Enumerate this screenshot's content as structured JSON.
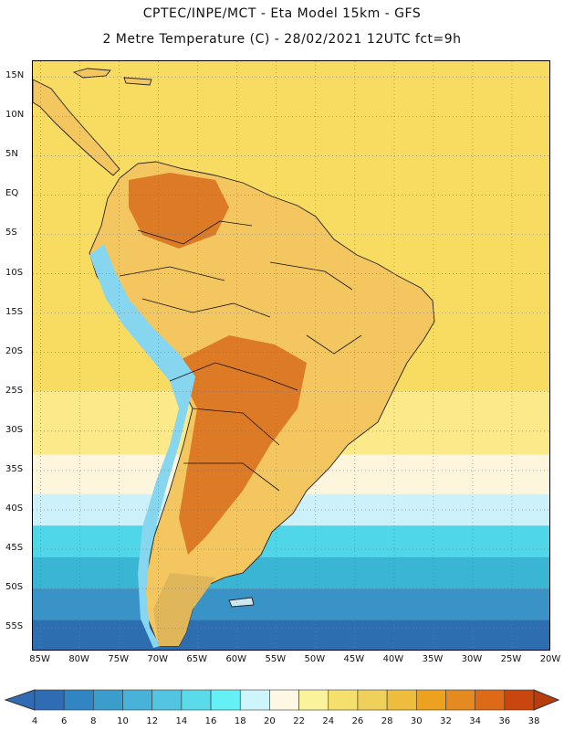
{
  "header": {
    "line1": "CPTEC/INPE/MCT -  Eta Model 15km - GFS",
    "line2": "2 Metre Temperature (C) - 28/02/2021 12UTC fct=9h"
  },
  "map": {
    "lat_range": [
      -58,
      17
    ],
    "lon_range": [
      -86,
      -20
    ],
    "lat_labels": [
      "15N",
      "10N",
      "5N",
      "EQ",
      "5S",
      "10S",
      "15S",
      "20S",
      "25S",
      "30S",
      "35S",
      "40S",
      "45S",
      "50S",
      "55S"
    ],
    "lat_values": [
      15,
      10,
      5,
      0,
      -5,
      -10,
      -15,
      -20,
      -25,
      -30,
      -35,
      -40,
      -45,
      -50,
      -55
    ],
    "lon_labels": [
      "85W",
      "80W",
      "75W",
      "70W",
      "65W",
      "60W",
      "55W",
      "50W",
      "45W",
      "40W",
      "35W",
      "30W",
      "25W",
      "20W"
    ],
    "lon_values": [
      -85,
      -80,
      -75,
      -70,
      -65,
      -60,
      -55,
      -50,
      -45,
      -40,
      -35,
      -30,
      -25,
      -20
    ],
    "ocean_bands": [
      {
        "lat_top": 17,
        "lat_bottom": -25,
        "color": "#f8dc62"
      },
      {
        "lat_top": -25,
        "lat_bottom": -33,
        "color": "#fbe98a"
      },
      {
        "lat_top": -33,
        "lat_bottom": -38,
        "color": "#fdf6dc"
      },
      {
        "lat_top": -38,
        "lat_bottom": -42,
        "color": "#cdf1fa"
      },
      {
        "lat_top": -42,
        "lat_bottom": -46,
        "color": "#4fd6e8"
      },
      {
        "lat_top": -46,
        "lat_bottom": -50,
        "color": "#3ab6d4"
      },
      {
        "lat_top": -50,
        "lat_bottom": -54,
        "color": "#3a93c6"
      },
      {
        "lat_top": -54,
        "lat_bottom": -58,
        "color": "#2d6eb0"
      }
    ],
    "land_color": "#f3c660",
    "hot_color": "#dc7a26",
    "andes_color": "#86d6f0"
  },
  "colorbar": {
    "labels": [
      "4",
      "6",
      "8",
      "10",
      "12",
      "14",
      "16",
      "18",
      "20",
      "22",
      "24",
      "26",
      "28",
      "30",
      "32",
      "34",
      "36",
      "38"
    ],
    "colors": [
      "#2f6cb3",
      "#3185c2",
      "#3a9dcc",
      "#48b2d8",
      "#52c6e0",
      "#5adbea",
      "#64f0f5",
      "#cdf5fb",
      "#fdf8e4",
      "#fbf29c",
      "#f6e06d",
      "#eed05a",
      "#eebd3d",
      "#eca21f",
      "#e48a20",
      "#dc6a17",
      "#c9470e"
    ],
    "under_color": "#2f6cb3",
    "over_color": "#b83d0c"
  }
}
